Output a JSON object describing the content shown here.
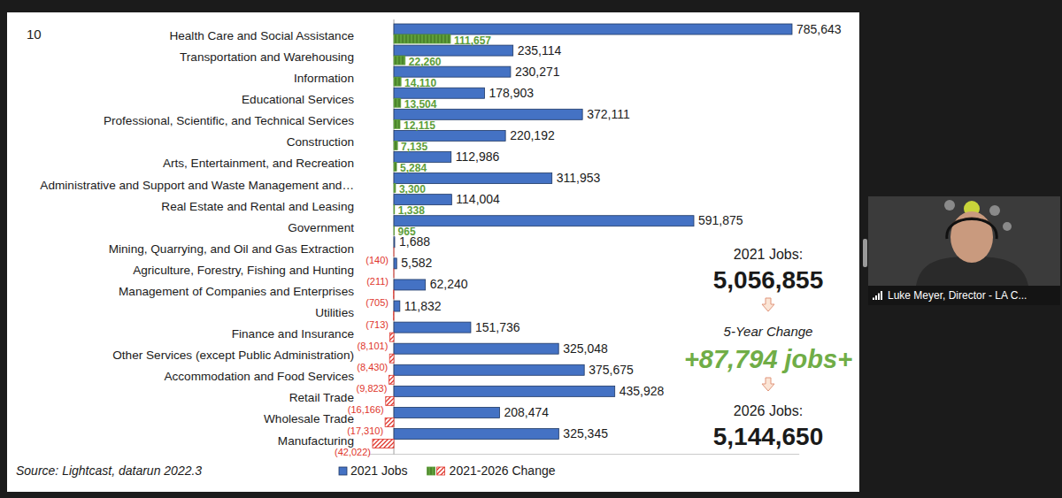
{
  "chart_data": {
    "type": "bar",
    "orientation": "horizontal",
    "data_labels": true,
    "tick_labels": "y",
    "grid": false,
    "legend": "bottom",
    "categories": [
      "Health Care and Social Assistance",
      "Transportation and Warehousing",
      "Information",
      "Educational Services",
      "Professional, Scientific, and Technical Services",
      "Construction",
      "Arts, Entertainment, and Recreation",
      "Administrative and Support and Waste Management and…",
      "Real Estate and Rental and Leasing",
      "Government",
      "Mining, Quarrying, and Oil and Gas Extraction",
      "Agriculture, Forestry, Fishing and Hunting",
      "Management of Companies and Enterprises",
      "Utilities",
      "Finance and Insurance",
      "Other Services (except Public Administration)",
      "Accommodation and Food Services",
      "Retail Trade",
      "Wholesale Trade",
      "Manufacturing"
    ],
    "series": [
      {
        "name": "2021 Jobs",
        "color": "#4472c4",
        "values": [
          785643,
          235114,
          230271,
          178903,
          372111,
          220192,
          112986,
          311953,
          114004,
          591875,
          1688,
          5582,
          62240,
          11832,
          151736,
          325048,
          375675,
          435928,
          208474,
          325345
        ],
        "value_labels": [
          "785,643",
          "235,114",
          "230,271",
          "178,903",
          "372,111",
          "220,192",
          "112,986",
          "311,953",
          "114,004",
          "591,875",
          "1,688",
          "5,582",
          "62,240",
          "11,832",
          "151,736",
          "325,048",
          "375,675",
          "435,928",
          "208,474",
          "325,345"
        ]
      },
      {
        "name": "2021-2026 Change",
        "colors": [
          "#5e9e3a",
          "#5e9e3a",
          "#5e9e3a",
          "#5e9e3a",
          "#5e9e3a",
          "#5e9e3a",
          "#5e9e3a",
          "#5e9e3a",
          "#5e9e3a",
          "#5e9e3a",
          "#e0352b",
          "#e0352b",
          "#e0352b",
          "#e0352b",
          "#e0352b",
          "#e0352b",
          "#e0352b",
          "#e0352b",
          "#e0352b",
          "#e0352b"
        ],
        "values": [
          111657,
          22260,
          14110,
          13504,
          12115,
          7135,
          5284,
          3300,
          1338,
          965,
          -140,
          -211,
          -705,
          -713,
          -8101,
          -8430,
          -9823,
          -16166,
          -17310,
          -42022
        ],
        "value_labels": [
          "111,657",
          "22,260",
          "14,110",
          "13,504",
          "12,115",
          "7,135",
          "5,284",
          "3,300",
          "1,338",
          "965",
          "(140)",
          "(211)",
          "(705)",
          "(713)",
          "(8,101)",
          "(8,430)",
          "(9,823)",
          "(16,166)",
          "(17,310)",
          "(42,022)"
        ]
      }
    ],
    "xlim": [
      -50000,
      800000
    ],
    "annotations": {
      "slide_number": "10",
      "source": "Source: Lightcast, datarun 2022.3",
      "start_label": "2021 Jobs:",
      "start_value": "5,056,855",
      "change_label": "5-Year Change",
      "change_value": "+87,794 jobs+",
      "end_label": "2026 Jobs:",
      "end_value": "5,144,650"
    }
  },
  "screen": {
    "presenter": "Luke Meyer, Director - LA C..."
  }
}
